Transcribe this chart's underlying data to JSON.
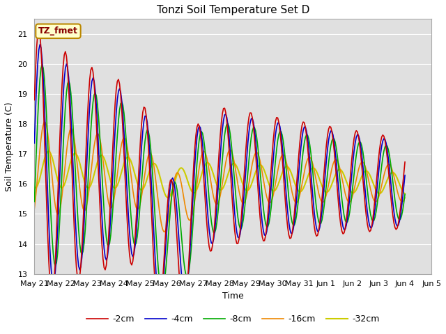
{
  "title": "Tonzi Soil Temperature Set D",
  "xlabel": "Time",
  "ylabel": "Soil Temperature (C)",
  "annotation": "TZ_fmet",
  "ylim": [
    13.0,
    21.5
  ],
  "yticks": [
    13.0,
    14.0,
    15.0,
    16.0,
    17.0,
    18.0,
    19.0,
    20.0,
    21.0
  ],
  "bg_color": "#e0e0e0",
  "fig_color": "#ffffff",
  "line_colors": {
    "-2cm": "#cc0000",
    "-4cm": "#0000cc",
    "-8cm": "#00aa00",
    "-16cm": "#ee8800",
    "-32cm": "#cccc00"
  },
  "x_tick_labels": [
    "May 21",
    "May 22",
    "May 23",
    "May 24",
    "May 25",
    "May 26",
    "May 27",
    "May 28",
    "May 29",
    "May 30",
    "May 31",
    "Jun 1",
    "Jun 2",
    "Jun 3",
    "Jun 4",
    "Jun 5"
  ],
  "annotation_box_facecolor": "#ffffcc",
  "annotation_box_edgecolor": "#bb8800",
  "annotation_text_color": "#880000",
  "grid_color": "#ffffff",
  "legend_labels": [
    "-2cm",
    "-4cm",
    "-8cm",
    "-16cm",
    "-32cm"
  ]
}
